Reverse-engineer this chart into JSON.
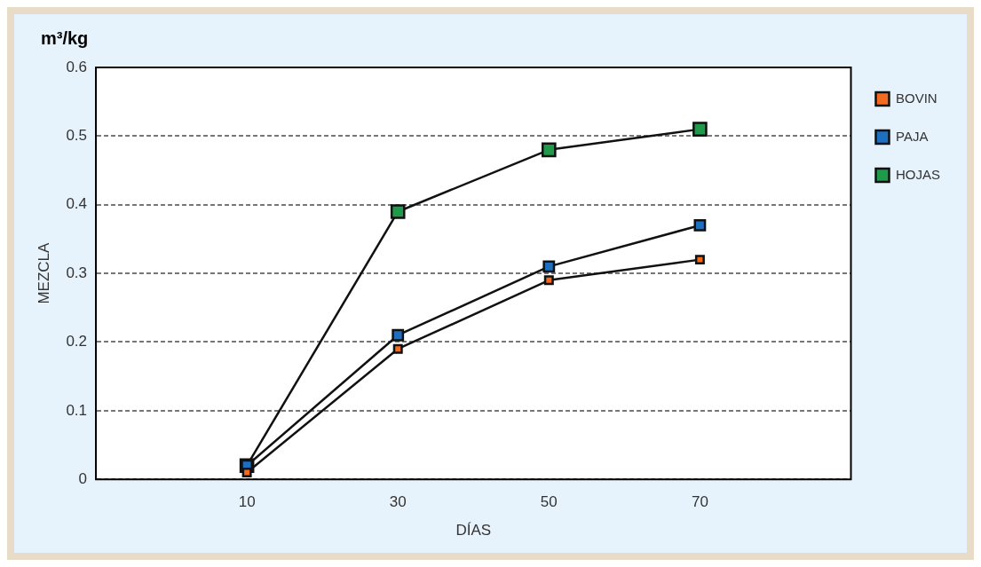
{
  "chart_data": {
    "type": "line",
    "xlabel": "DÍAS",
    "ylabel": "MEZCLA",
    "annotations": [
      "m³/kg"
    ],
    "x": [
      10,
      30,
      50,
      70
    ],
    "series": [
      {
        "name": "BOVIN",
        "color": "#f26b21",
        "values": [
          0.01,
          0.19,
          0.29,
          0.32
        ]
      },
      {
        "name": "PAJA",
        "color": "#1f6fc0",
        "values": [
          0.02,
          0.21,
          0.31,
          0.37
        ]
      },
      {
        "name": "HOJAS",
        "color": "#1e9a4a",
        "values": [
          0.02,
          0.39,
          0.48,
          0.51
        ]
      }
    ],
    "xlim": [
      -10,
      90
    ],
    "xticks": [
      10,
      30,
      50,
      70
    ],
    "ylim": [
      0,
      0.6
    ],
    "yticks": [
      0,
      0.1,
      0.2,
      0.3,
      0.4,
      0.5,
      0.6
    ],
    "grid": "y",
    "legend": "top right",
    "marker": "square",
    "line_style": "solid"
  }
}
